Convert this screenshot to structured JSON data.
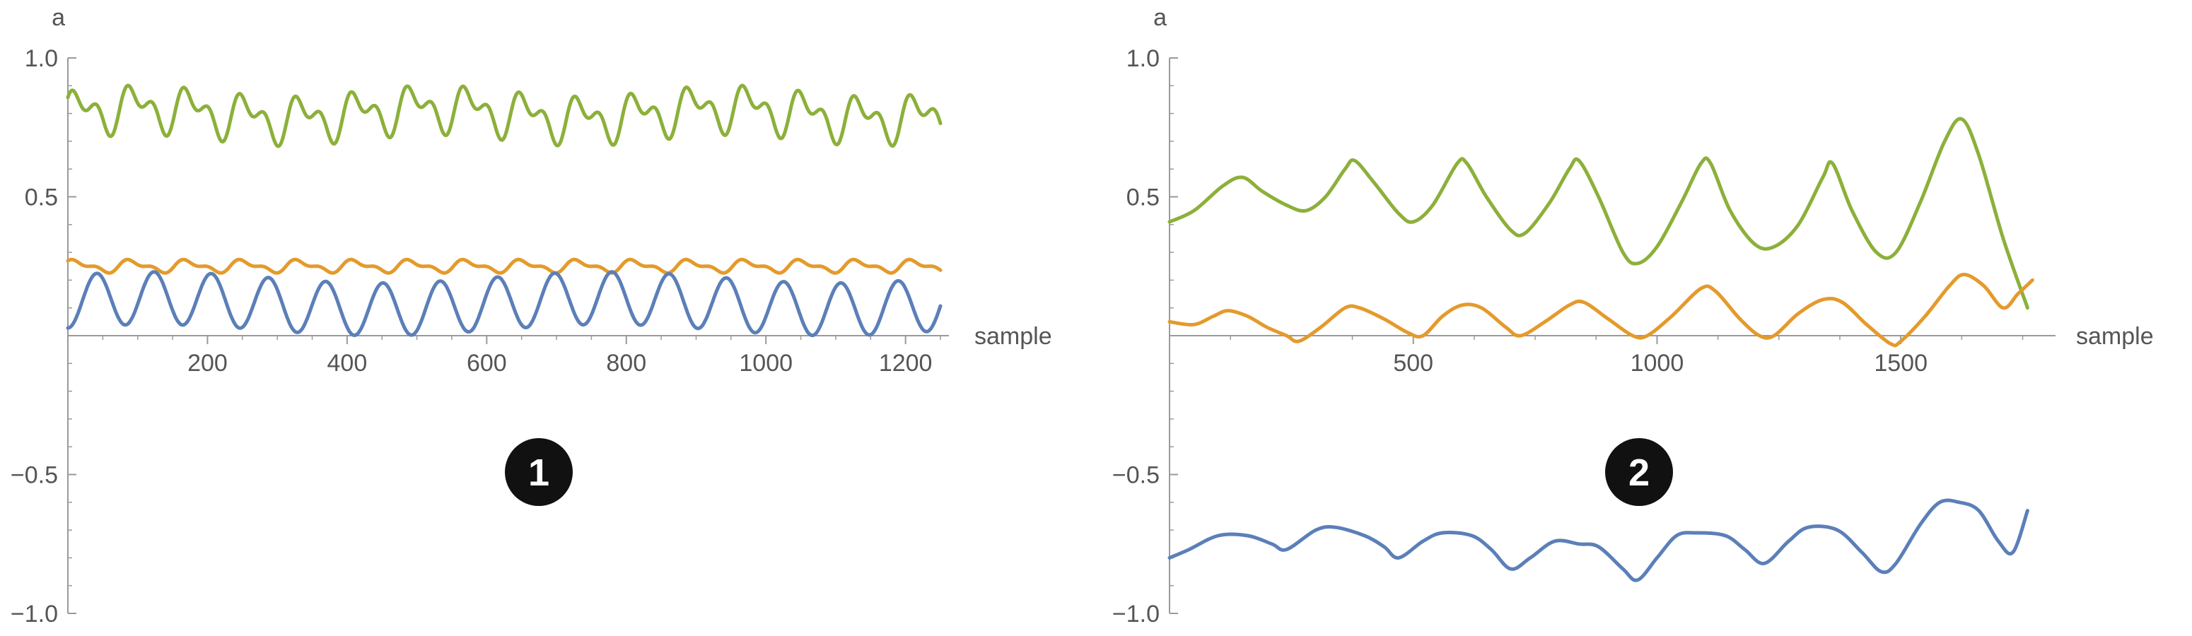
{
  "colors": {
    "blue": "#5b7fb8",
    "orange": "#e49a2c",
    "green": "#8cb03a",
    "axis": "#9a9a9a",
    "badge": "#111111",
    "badge_text": "#ffffff"
  },
  "chart_data": [
    {
      "type": "line",
      "badge": "1",
      "ylabel": "a",
      "xlabel": "sample",
      "xlim": [
        0,
        1250
      ],
      "ylim": [
        -1.0,
        1.0
      ],
      "xticks": [
        200,
        400,
        600,
        800,
        1000,
        1200
      ],
      "yticks": [
        1.0,
        0.5,
        -0.5,
        -1.0
      ],
      "xtick_labels": [
        "200",
        "400",
        "600",
        "800",
        "1000",
        "1200"
      ],
      "ytick_labels": [
        "1.0",
        "0.5",
        "−0.5",
        "−1.0"
      ],
      "series": [
        {
          "color": "#8cb03a",
          "base": 0.8,
          "terms": [
            [
              0.06,
              80,
              0.3
            ],
            [
              0.045,
              40,
              1.1
            ],
            [
              0.02,
              420,
              0.0
            ]
          ],
          "n": 1250
        },
        {
          "color": "#e49a2c",
          "base": 0.25,
          "terms": [
            [
              0.018,
              80,
              0.6
            ],
            [
              0.01,
              40,
              1.2
            ]
          ],
          "n": 1250
        },
        {
          "color": "#5b7fb8",
          "base": 0.115,
          "terms": [
            [
              0.095,
              82,
              -1.6
            ],
            [
              0.02,
              650,
              0.4
            ]
          ],
          "n": 1250
        }
      ]
    },
    {
      "type": "line",
      "badge": "2",
      "ylabel": "a",
      "xlabel": "sample",
      "xlim": [
        0,
        1800
      ],
      "ylim": [
        -1.0,
        1.0
      ],
      "xticks": [
        500,
        1000,
        1500
      ],
      "yticks": [
        1.0,
        0.5,
        -0.5,
        -1.0
      ],
      "xtick_labels": [
        "500",
        "1000",
        "1500"
      ],
      "ytick_labels": [
        "1.0",
        "0.5",
        "−0.5",
        "−1.0"
      ],
      "series": [
        {
          "color": "#8cb03a",
          "points": [
            [
              0,
              0.41
            ],
            [
              50,
              0.45
            ],
            [
              110,
              0.54
            ],
            [
              150,
              0.57
            ],
            [
              190,
              0.52
            ],
            [
              240,
              0.47
            ],
            [
              280,
              0.45
            ],
            [
              320,
              0.5
            ],
            [
              360,
              0.6
            ],
            [
              380,
              0.63
            ],
            [
              420,
              0.55
            ],
            [
              470,
              0.44
            ],
            [
              500,
              0.41
            ],
            [
              540,
              0.47
            ],
            [
              590,
              0.62
            ],
            [
              610,
              0.62
            ],
            [
              650,
              0.5
            ],
            [
              700,
              0.38
            ],
            [
              730,
              0.37
            ],
            [
              780,
              0.48
            ],
            [
              820,
              0.6
            ],
            [
              840,
              0.63
            ],
            [
              880,
              0.5
            ],
            [
              930,
              0.3
            ],
            [
              960,
              0.26
            ],
            [
              1000,
              0.32
            ],
            [
              1050,
              0.48
            ],
            [
              1090,
              0.62
            ],
            [
              1110,
              0.62
            ],
            [
              1150,
              0.45
            ],
            [
              1200,
              0.33
            ],
            [
              1240,
              0.32
            ],
            [
              1290,
              0.4
            ],
            [
              1340,
              0.57
            ],
            [
              1360,
              0.62
            ],
            [
              1400,
              0.45
            ],
            [
              1450,
              0.3
            ],
            [
              1490,
              0.3
            ],
            [
              1540,
              0.48
            ],
            [
              1590,
              0.7
            ],
            [
              1625,
              0.78
            ],
            [
              1660,
              0.65
            ],
            [
              1710,
              0.35
            ],
            [
              1760,
              0.1
            ]
          ]
        },
        {
          "color": "#e49a2c",
          "points": [
            [
              0,
              0.05
            ],
            [
              50,
              0.04
            ],
            [
              90,
              0.07
            ],
            [
              120,
              0.09
            ],
            [
              160,
              0.07
            ],
            [
              200,
              0.03
            ],
            [
              240,
              0.0
            ],
            [
              265,
              -0.02
            ],
            [
              310,
              0.03
            ],
            [
              360,
              0.1
            ],
            [
              390,
              0.1
            ],
            [
              440,
              0.06
            ],
            [
              490,
              0.01
            ],
            [
              520,
              0.0
            ],
            [
              560,
              0.07
            ],
            [
              600,
              0.11
            ],
            [
              640,
              0.1
            ],
            [
              690,
              0.03
            ],
            [
              720,
              0.0
            ],
            [
              770,
              0.05
            ],
            [
              820,
              0.11
            ],
            [
              850,
              0.12
            ],
            [
              900,
              0.06
            ],
            [
              950,
              0.0
            ],
            [
              980,
              0.0
            ],
            [
              1030,
              0.07
            ],
            [
              1090,
              0.17
            ],
            [
              1120,
              0.16
            ],
            [
              1170,
              0.06
            ],
            [
              1210,
              0.0
            ],
            [
              1240,
              0.0
            ],
            [
              1290,
              0.08
            ],
            [
              1340,
              0.13
            ],
            [
              1380,
              0.12
            ],
            [
              1430,
              0.04
            ],
            [
              1480,
              -0.03
            ],
            [
              1500,
              -0.02
            ],
            [
              1550,
              0.07
            ],
            [
              1600,
              0.18
            ],
            [
              1630,
              0.22
            ],
            [
              1670,
              0.18
            ],
            [
              1710,
              0.1
            ],
            [
              1740,
              0.15
            ],
            [
              1770,
              0.2
            ]
          ]
        },
        {
          "color": "#5b7fb8",
          "points": [
            [
              0,
              -0.8
            ],
            [
              40,
              -0.77
            ],
            [
              100,
              -0.72
            ],
            [
              160,
              -0.72
            ],
            [
              210,
              -0.75
            ],
            [
              240,
              -0.77
            ],
            [
              300,
              -0.7
            ],
            [
              340,
              -0.69
            ],
            [
              400,
              -0.72
            ],
            [
              440,
              -0.76
            ],
            [
              470,
              -0.8
            ],
            [
              520,
              -0.74
            ],
            [
              560,
              -0.71
            ],
            [
              620,
              -0.72
            ],
            [
              660,
              -0.77
            ],
            [
              700,
              -0.84
            ],
            [
              740,
              -0.8
            ],
            [
              790,
              -0.74
            ],
            [
              840,
              -0.75
            ],
            [
              880,
              -0.76
            ],
            [
              930,
              -0.84
            ],
            [
              960,
              -0.88
            ],
            [
              1000,
              -0.8
            ],
            [
              1040,
              -0.72
            ],
            [
              1080,
              -0.71
            ],
            [
              1140,
              -0.72
            ],
            [
              1180,
              -0.77
            ],
            [
              1220,
              -0.82
            ],
            [
              1270,
              -0.74
            ],
            [
              1310,
              -0.69
            ],
            [
              1370,
              -0.7
            ],
            [
              1420,
              -0.78
            ],
            [
              1460,
              -0.85
            ],
            [
              1490,
              -0.82
            ],
            [
              1540,
              -0.68
            ],
            [
              1580,
              -0.6
            ],
            [
              1620,
              -0.6
            ],
            [
              1660,
              -0.63
            ],
            [
              1700,
              -0.74
            ],
            [
              1730,
              -0.78
            ],
            [
              1760,
              -0.63
            ]
          ]
        }
      ]
    }
  ]
}
